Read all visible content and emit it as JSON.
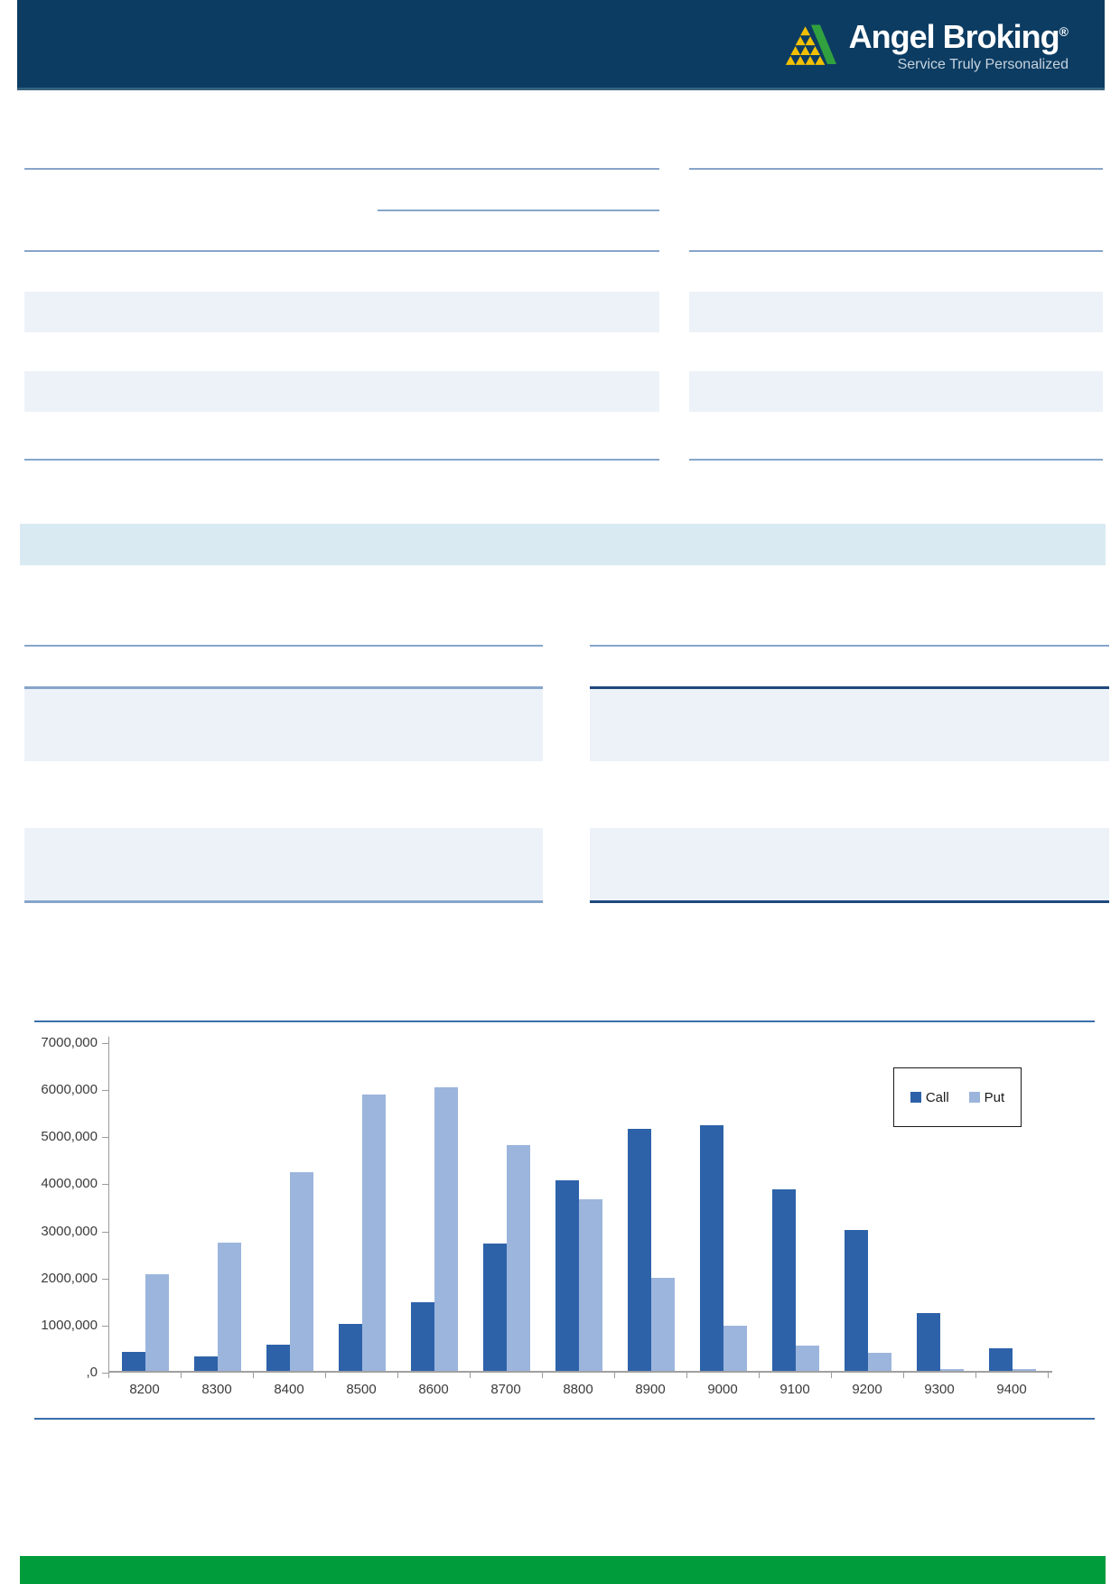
{
  "header": {
    "brand": "Angel Broking",
    "reg_mark": "®",
    "tagline": "Service Truly Personalized",
    "colors": {
      "bar_navy": "#0C3C62",
      "logo_yellow": "#F3C000",
      "logo_green": "#31A13F"
    }
  },
  "document": {
    "colors": {
      "rule_light": "#87A5CA",
      "rule_dark": "#1F497D",
      "row_stripe": "#EDF2F8",
      "section_band": "#D9EAF3",
      "chart_rule": "#3A6EAB",
      "footer_green": "#009C3C"
    }
  },
  "chart_data": {
    "type": "bar",
    "title": "",
    "xlabel": "",
    "ylabel": "",
    "categories": [
      "8200",
      "8300",
      "8400",
      "8500",
      "8600",
      "8700",
      "8800",
      "8900",
      "9000",
      "9100",
      "9200",
      "9300",
      "9400"
    ],
    "series": [
      {
        "name": "Call",
        "color": "#2D62A9",
        "values": [
          400000,
          310000,
          560000,
          1000000,
          1450000,
          2700000,
          4040000,
          5140000,
          5220000,
          3850000,
          3000000,
          1230000,
          470000
        ]
      },
      {
        "name": "Put",
        "color": "#9CB5DD",
        "values": [
          2050000,
          2730000,
          4210000,
          5860000,
          6020000,
          4790000,
          3640000,
          1980000,
          950000,
          530000,
          390000,
          40000,
          40000
        ]
      }
    ],
    "ylim": [
      0,
      7000000
    ],
    "ytick_labels": [
      "7000,000",
      "6000,000",
      "5000,000",
      "4000,000",
      "3000,000",
      "2000,000",
      "1000,000",
      ",0"
    ],
    "legend": [
      "Call",
      "Put"
    ],
    "legend_position": "top-right",
    "grid": false
  }
}
